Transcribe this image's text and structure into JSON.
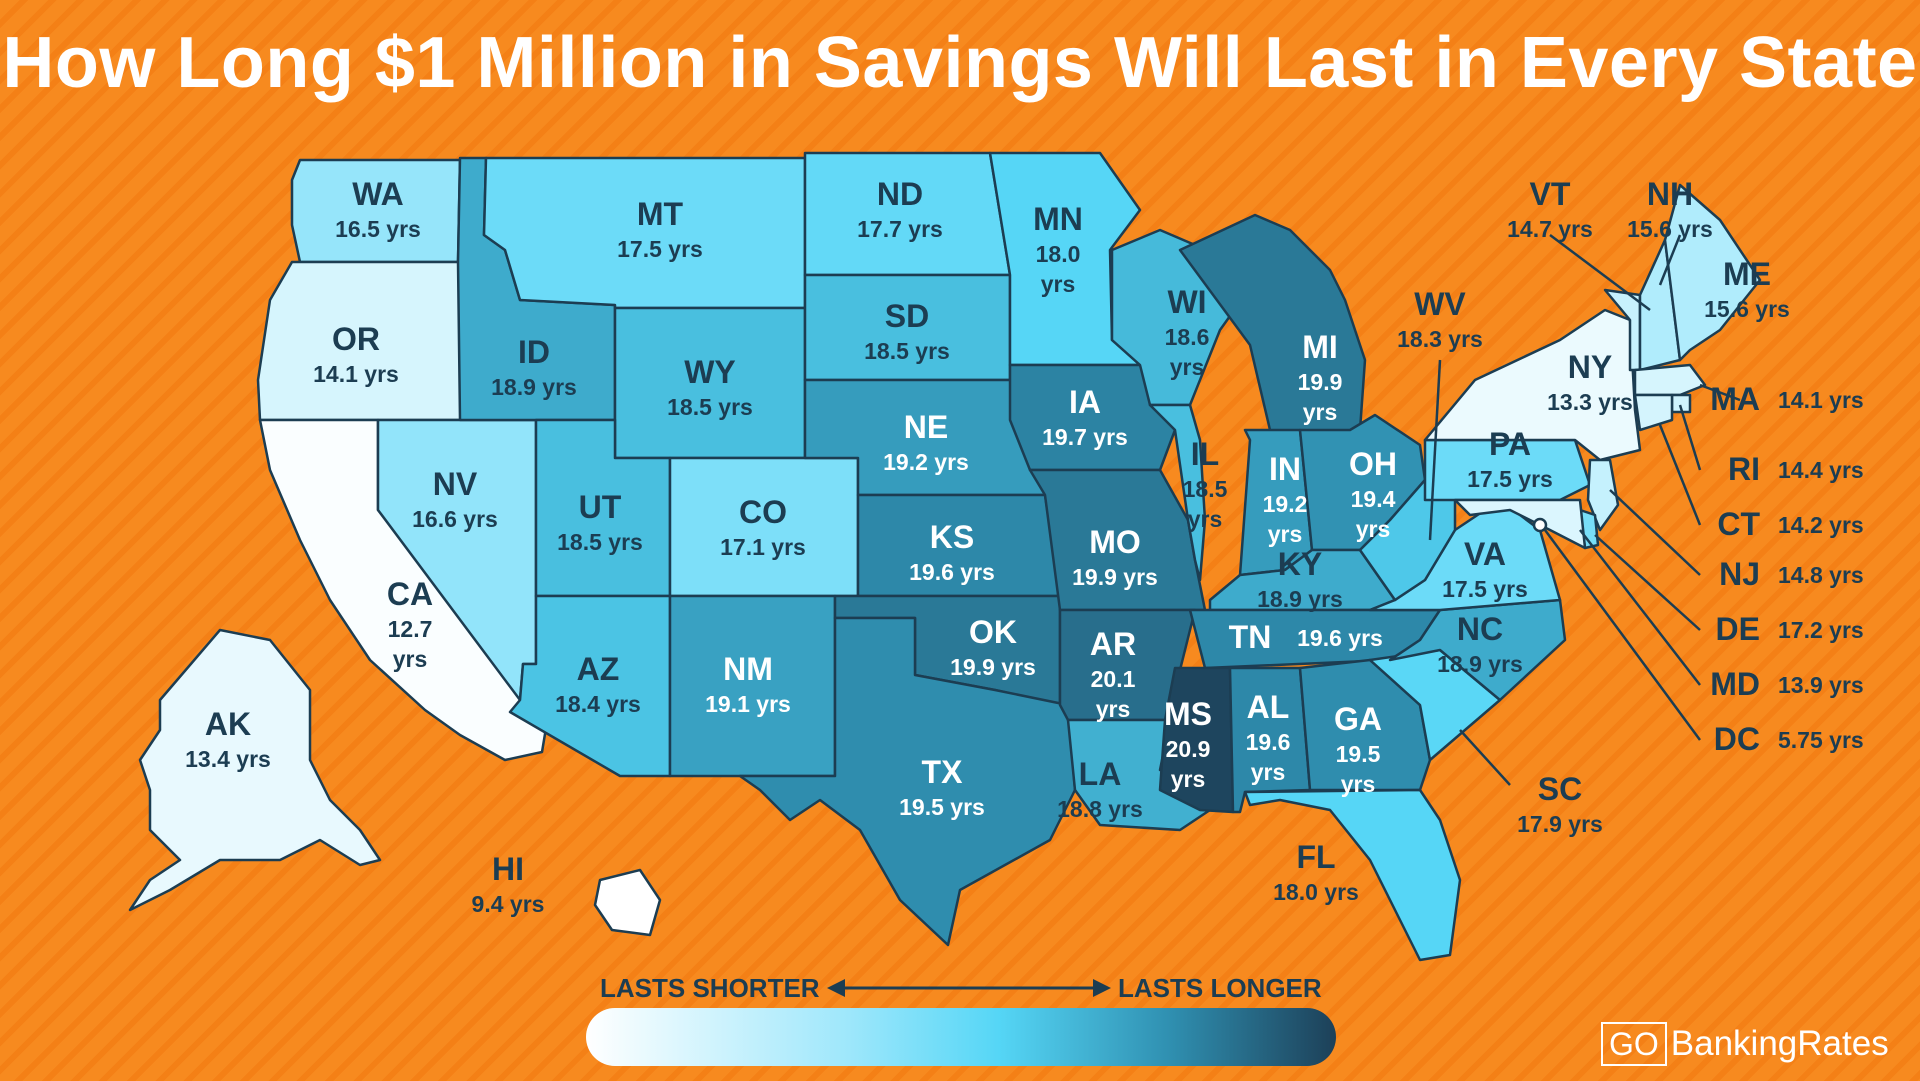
{
  "title": "How Long $1 Million in Savings Will Last in Every State",
  "colors": {
    "background": "#f78a1f",
    "outline": "#1c3d52",
    "shortest": "#ffffff",
    "longest": "#1d4058"
  },
  "legend": {
    "shorter": "LASTS SHORTER",
    "longer": "LASTS LONGER"
  },
  "brand": {
    "go": "GO",
    "name": "BankingRates"
  },
  "states": [
    {
      "code": "WA",
      "value": "16.5 yrs"
    },
    {
      "code": "OR",
      "value": "14.1 yrs"
    },
    {
      "code": "CA",
      "value": "12.7 yrs"
    },
    {
      "code": "NV",
      "value": "16.6 yrs"
    },
    {
      "code": "ID",
      "value": "18.9 yrs"
    },
    {
      "code": "MT",
      "value": "17.5 yrs"
    },
    {
      "code": "WY",
      "value": "18.5 yrs"
    },
    {
      "code": "UT",
      "value": "18.5 yrs"
    },
    {
      "code": "AZ",
      "value": "18.4 yrs"
    },
    {
      "code": "CO",
      "value": "17.1 yrs"
    },
    {
      "code": "NM",
      "value": "19.1 yrs"
    },
    {
      "code": "ND",
      "value": "17.7 yrs"
    },
    {
      "code": "SD",
      "value": "18.5 yrs"
    },
    {
      "code": "NE",
      "value": "19.2 yrs"
    },
    {
      "code": "KS",
      "value": "19.6 yrs"
    },
    {
      "code": "OK",
      "value": "19.9 yrs"
    },
    {
      "code": "TX",
      "value": "19.5 yrs"
    },
    {
      "code": "MN",
      "value": "18.0 yrs"
    },
    {
      "code": "IA",
      "value": "19.7 yrs"
    },
    {
      "code": "MO",
      "value": "19.9 yrs"
    },
    {
      "code": "AR",
      "value": "20.1 yrs"
    },
    {
      "code": "LA",
      "value": "18.8 yrs"
    },
    {
      "code": "WI",
      "value": "18.6 yrs"
    },
    {
      "code": "IL",
      "value": "18.5 yrs"
    },
    {
      "code": "MI",
      "value": "19.9 yrs"
    },
    {
      "code": "IN",
      "value": "19.2 yrs"
    },
    {
      "code": "OH",
      "value": "19.4 yrs"
    },
    {
      "code": "KY",
      "value": "18.9 yrs"
    },
    {
      "code": "TN",
      "value": "19.6 yrs"
    },
    {
      "code": "MS",
      "value": "20.9 yrs"
    },
    {
      "code": "AL",
      "value": "19.6 yrs"
    },
    {
      "code": "GA",
      "value": "19.5 yrs"
    },
    {
      "code": "FL",
      "value": "18.0 yrs"
    },
    {
      "code": "SC",
      "value": "17.9 yrs"
    },
    {
      "code": "NC",
      "value": "18.9 yrs"
    },
    {
      "code": "VA",
      "value": "17.5 yrs"
    },
    {
      "code": "WV",
      "value": "18.3 yrs"
    },
    {
      "code": "PA",
      "value": "17.5 yrs"
    },
    {
      "code": "NY",
      "value": "13.3 yrs"
    },
    {
      "code": "VT",
      "value": "14.7 yrs"
    },
    {
      "code": "NH",
      "value": "15.6 yrs"
    },
    {
      "code": "ME",
      "value": "15.6 yrs"
    },
    {
      "code": "MA",
      "value": "14.1 yrs"
    },
    {
      "code": "RI",
      "value": "14.4 yrs"
    },
    {
      "code": "CT",
      "value": "14.2 yrs"
    },
    {
      "code": "NJ",
      "value": "14.8 yrs"
    },
    {
      "code": "DE",
      "value": "17.2 yrs"
    },
    {
      "code": "MD",
      "value": "13.9 yrs"
    },
    {
      "code": "DC",
      "value": "5.75 yrs"
    },
    {
      "code": "AK",
      "value": "13.4 yrs"
    },
    {
      "code": "HI",
      "value": "9.4 yrs"
    }
  ]
}
